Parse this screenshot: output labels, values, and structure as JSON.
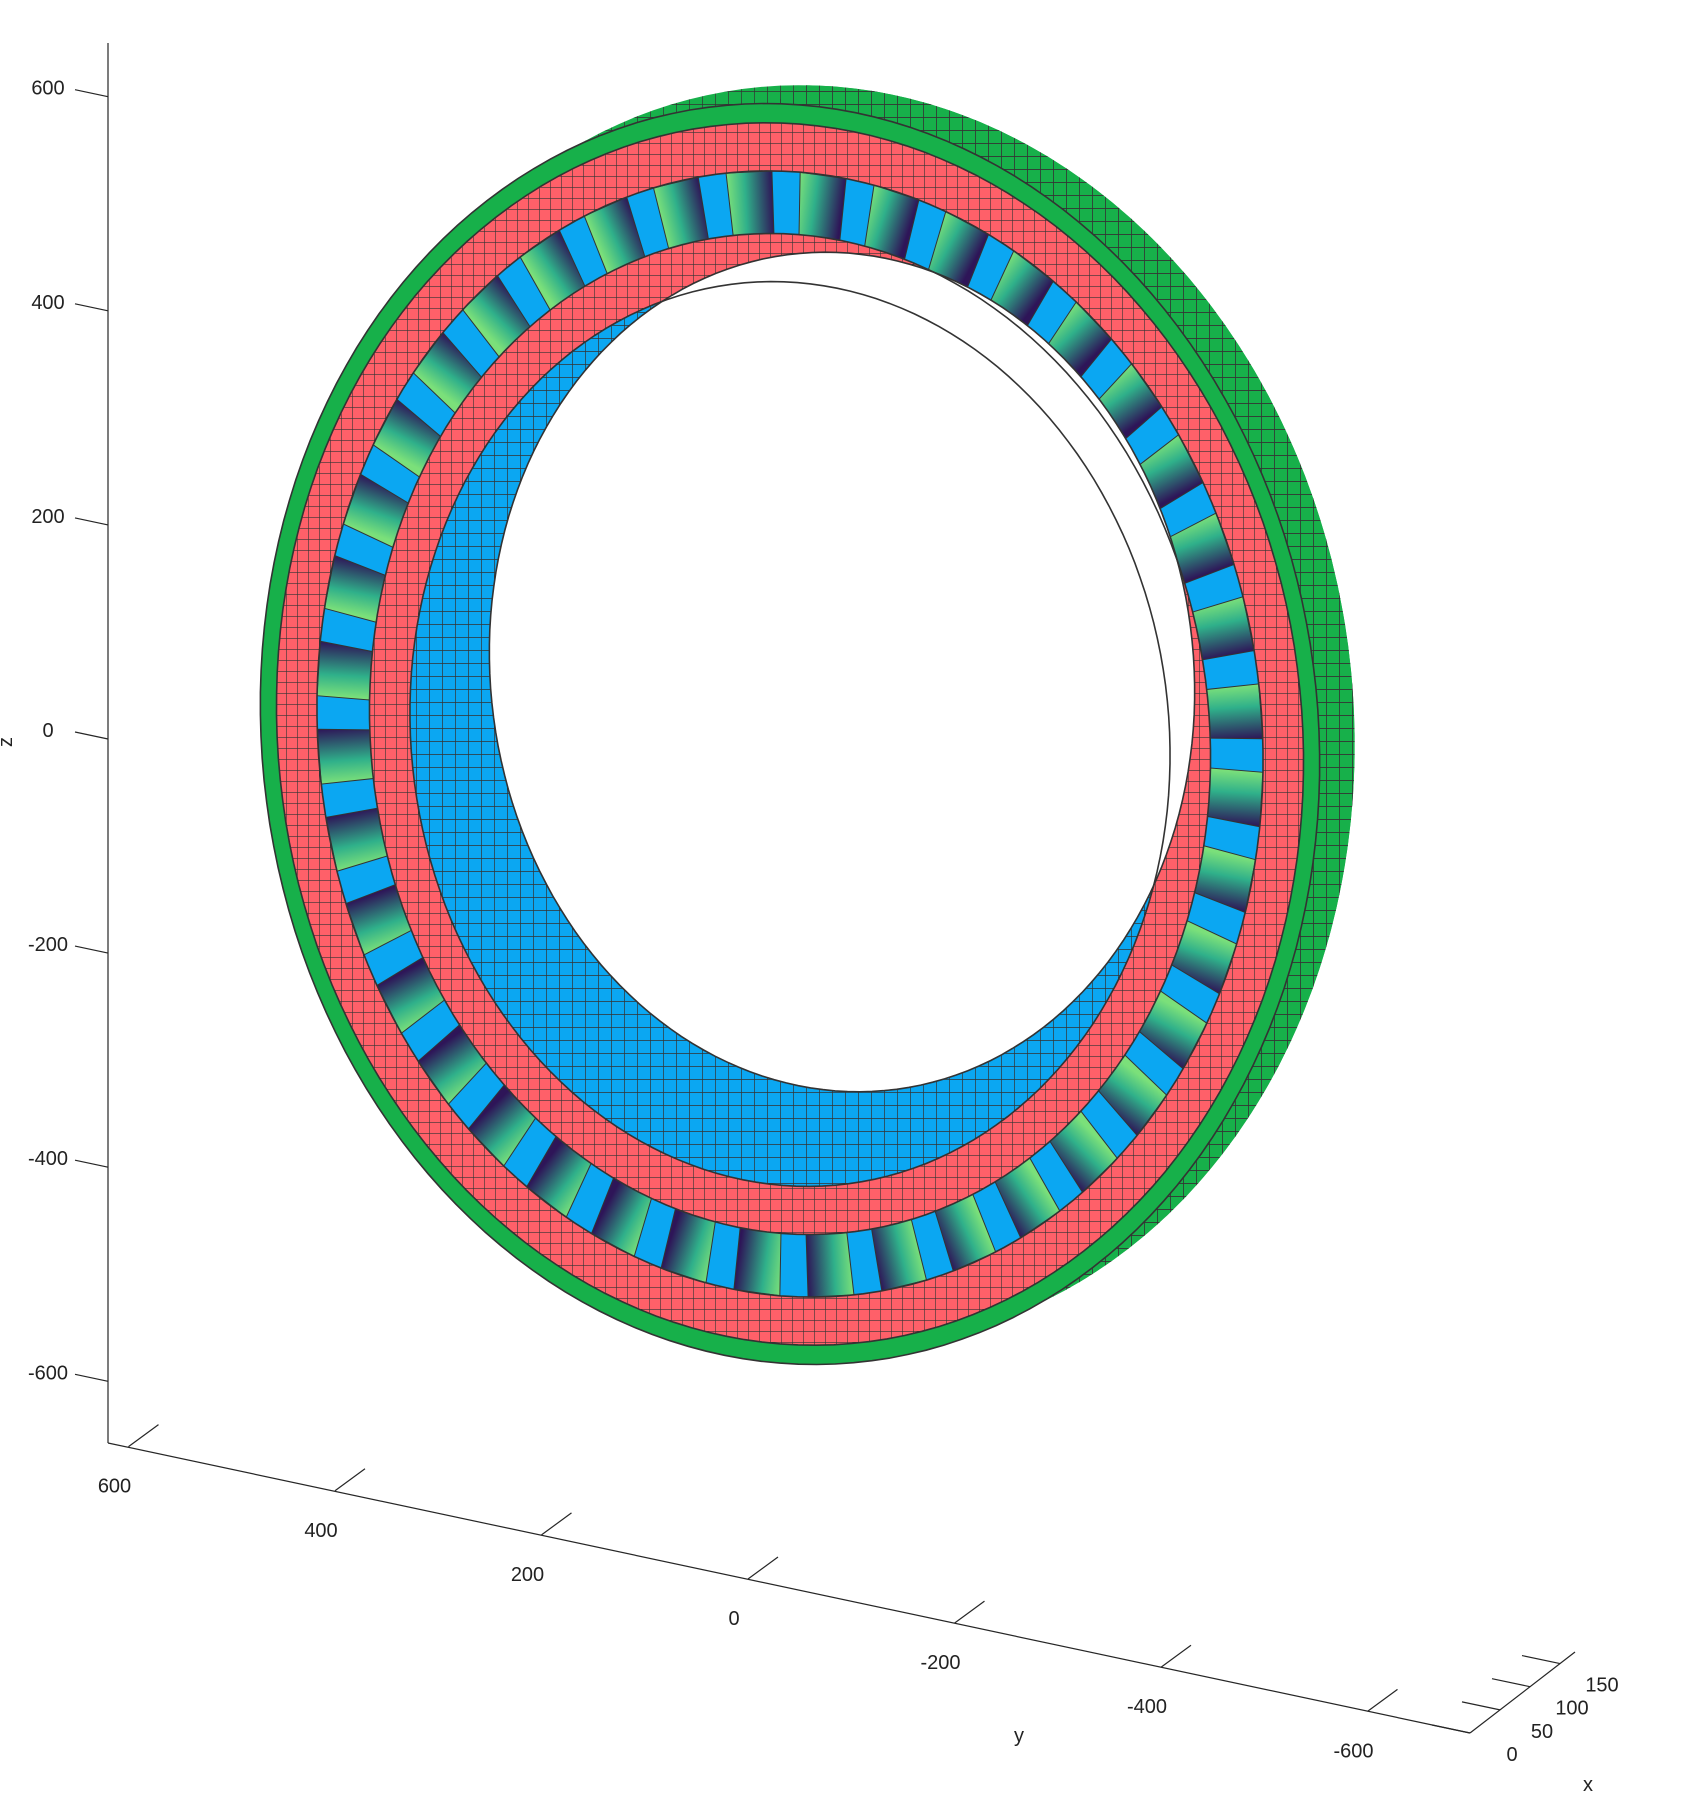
{
  "chart_data": {
    "type": "surface3d",
    "title": "",
    "xlabel": "x",
    "ylabel": "y",
    "zlabel": "z",
    "x_ticks": [
      0,
      50,
      100,
      150
    ],
    "y_ticks": [
      600,
      400,
      200,
      0,
      -200,
      -400,
      -600
    ],
    "z_ticks": [
      600,
      400,
      200,
      0,
      -200,
      -400,
      -600
    ],
    "x_tick_labels": [
      "0",
      "50",
      "100",
      "150"
    ],
    "y_tick_labels": [
      "600",
      "400",
      "200",
      "0",
      "-200",
      "-400",
      "-600"
    ],
    "z_tick_labels": [
      "600",
      "400",
      "200",
      "0",
      "-200",
      "-400",
      "-600"
    ],
    "xlim": [
      0,
      175
    ],
    "ylim": [
      -680,
      680
    ],
    "zlim": [
      -650,
      650
    ],
    "grid": false,
    "model": {
      "axial_length": 175,
      "slot_count": 40,
      "layers": [
        {
          "name": "outer",
          "r_inner": 635,
          "r_outer": 655,
          "color": "#17b04a"
        },
        {
          "name": "stator-back",
          "r_inner": 585,
          "r_outer": 635,
          "color": "#ff6069"
        },
        {
          "name": "slots",
          "r_inner": 520,
          "r_outer": 585,
          "color": "#3a1f66"
        },
        {
          "name": "stator-inner",
          "r_inner": 470,
          "r_outer": 520,
          "color": "#ff6069"
        },
        {
          "name": "bore",
          "r_inner": 445,
          "r_outer": 470,
          "color": "#0ba7f2"
        }
      ],
      "slot_gradient": [
        "#2e1558",
        "#2fb08a",
        "#7be07a"
      ],
      "edge_color": "#333333"
    }
  }
}
